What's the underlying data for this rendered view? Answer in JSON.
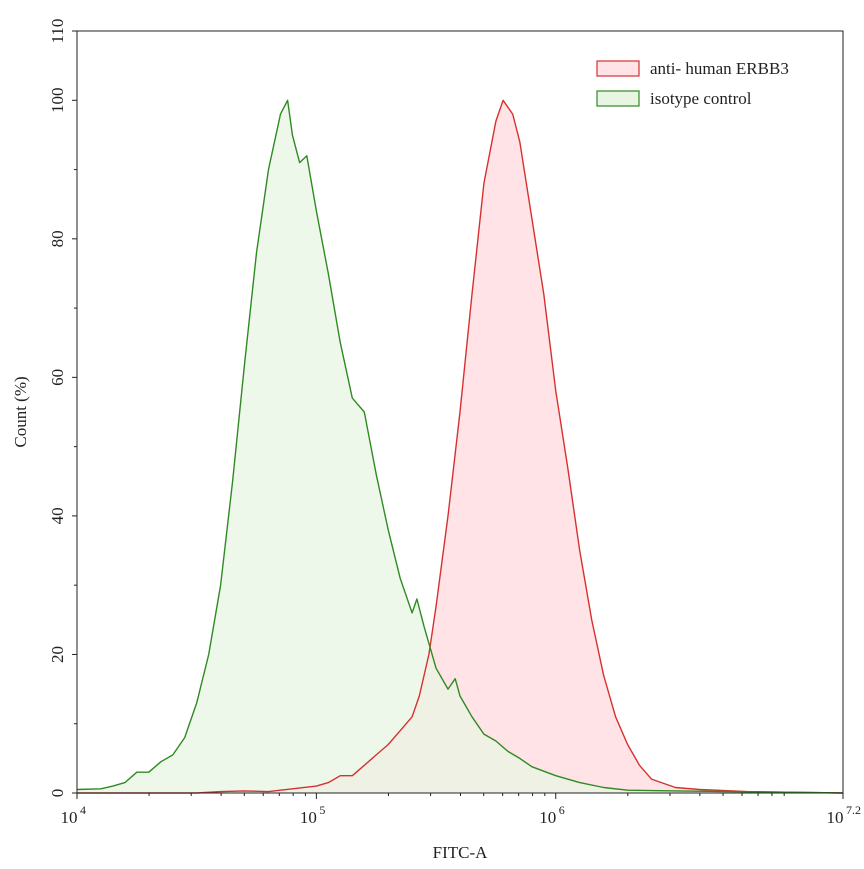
{
  "chart_data": {
    "type": "area",
    "title": "",
    "xlabel": "FITC-A",
    "ylabel": "Count  (%)",
    "x_scale": "log10",
    "xlim_exponent": [
      4,
      7.2
    ],
    "ylim": [
      0,
      110
    ],
    "x_ticks": [
      {
        "base": "10",
        "exp": "4",
        "value": 4
      },
      {
        "base": "10",
        "exp": "5",
        "value": 5
      },
      {
        "base": "10",
        "exp": "6",
        "value": 6
      },
      {
        "base": "10",
        "exp": "7.2",
        "value": 7.2
      }
    ],
    "y_ticks": [
      "0",
      "20",
      "40",
      "60",
      "80",
      "100",
      "110"
    ],
    "grid": false,
    "legend_position": "top-right",
    "series": [
      {
        "name": "anti- human ERBB3",
        "line_color": "#d6312f",
        "fill_color": "#ffe3e6",
        "points": [
          [
            4.0,
            0
          ],
          [
            4.5,
            0
          ],
          [
            4.6,
            0.2
          ],
          [
            4.7,
            0.3
          ],
          [
            4.8,
            0.2
          ],
          [
            4.9,
            0.6
          ],
          [
            5.0,
            1.0
          ],
          [
            5.05,
            1.5
          ],
          [
            5.1,
            2.5
          ],
          [
            5.15,
            2.5
          ],
          [
            5.2,
            4.0
          ],
          [
            5.25,
            5.5
          ],
          [
            5.3,
            7.0
          ],
          [
            5.35,
            9.0
          ],
          [
            5.4,
            11.0
          ],
          [
            5.43,
            14.0
          ],
          [
            5.47,
            20.0
          ],
          [
            5.5,
            27.0
          ],
          [
            5.55,
            40.0
          ],
          [
            5.6,
            55.0
          ],
          [
            5.65,
            72.0
          ],
          [
            5.7,
            88.0
          ],
          [
            5.75,
            97.0
          ],
          [
            5.78,
            100.0
          ],
          [
            5.82,
            98.0
          ],
          [
            5.85,
            94.0
          ],
          [
            5.9,
            83.0
          ],
          [
            5.95,
            72.0
          ],
          [
            6.0,
            58.0
          ],
          [
            6.05,
            47.0
          ],
          [
            6.1,
            35.0
          ],
          [
            6.15,
            25.0
          ],
          [
            6.2,
            17.0
          ],
          [
            6.25,
            11.0
          ],
          [
            6.3,
            7.0
          ],
          [
            6.35,
            4.0
          ],
          [
            6.4,
            2.0
          ],
          [
            6.5,
            0.8
          ],
          [
            6.6,
            0.5
          ],
          [
            6.8,
            0.2
          ],
          [
            7.0,
            0.1
          ],
          [
            7.2,
            0
          ]
        ]
      },
      {
        "name": "isotype control",
        "line_color": "#2f8a22",
        "fill_color": "#e8f5e3",
        "points": [
          [
            4.0,
            0.5
          ],
          [
            4.1,
            0.6
          ],
          [
            4.15,
            1.0
          ],
          [
            4.2,
            1.5
          ],
          [
            4.25,
            3.0
          ],
          [
            4.3,
            3.0
          ],
          [
            4.35,
            4.5
          ],
          [
            4.4,
            5.5
          ],
          [
            4.45,
            8.0
          ],
          [
            4.5,
            13.0
          ],
          [
            4.55,
            20.0
          ],
          [
            4.6,
            30.0
          ],
          [
            4.65,
            45.0
          ],
          [
            4.7,
            62.0
          ],
          [
            4.75,
            78.0
          ],
          [
            4.8,
            90.0
          ],
          [
            4.85,
            98.0
          ],
          [
            4.88,
            100.0
          ],
          [
            4.9,
            95.0
          ],
          [
            4.93,
            91.0
          ],
          [
            4.96,
            92.0
          ],
          [
            5.0,
            84.0
          ],
          [
            5.05,
            75.0
          ],
          [
            5.1,
            65.0
          ],
          [
            5.15,
            57.0
          ],
          [
            5.2,
            55.0
          ],
          [
            5.25,
            46.0
          ],
          [
            5.3,
            38.0
          ],
          [
            5.35,
            31.0
          ],
          [
            5.4,
            26.0
          ],
          [
            5.42,
            28.0
          ],
          [
            5.45,
            24.0
          ],
          [
            5.5,
            18.0
          ],
          [
            5.55,
            15.0
          ],
          [
            5.58,
            16.5
          ],
          [
            5.6,
            14.0
          ],
          [
            5.65,
            11.0
          ],
          [
            5.7,
            8.5
          ],
          [
            5.75,
            7.5
          ],
          [
            5.8,
            6.0
          ],
          [
            5.85,
            5.0
          ],
          [
            5.9,
            3.8
          ],
          [
            6.0,
            2.5
          ],
          [
            6.1,
            1.5
          ],
          [
            6.2,
            0.8
          ],
          [
            6.3,
            0.4
          ],
          [
            6.5,
            0.3
          ],
          [
            7.0,
            0.1
          ],
          [
            7.2,
            0
          ]
        ]
      }
    ]
  }
}
